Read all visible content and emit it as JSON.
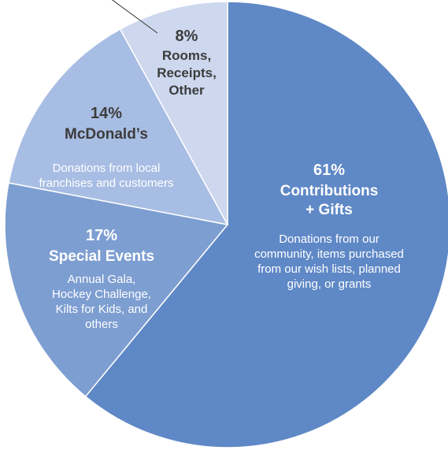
{
  "chart_data": {
    "type": "pie",
    "title": "",
    "start_angle_deg": 0,
    "direction": "clockwise",
    "slices": [
      {
        "value": 61,
        "percent_label": "61%",
        "name_lines": [
          "Contributions",
          "+ Gifts"
        ],
        "description_lines": [
          "Donations from our",
          "community, items purchased",
          "from our wish lists, planned",
          "giving, or grants"
        ],
        "color": "#5f88c6",
        "text_color": "#ffffff",
        "desc_color": "#ffffff"
      },
      {
        "value": 17,
        "percent_label": "17%",
        "name_lines": [
          "Special Events"
        ],
        "description_lines": [
          "Annual Gala,",
          "Hockey Challenge,",
          "Kilts for Kids, and",
          "others"
        ],
        "color": "#7d9ed1",
        "text_color": "#ffffff",
        "desc_color": "#ffffff"
      },
      {
        "value": 14,
        "percent_label": "14%",
        "name_lines": [
          "McDonald’s"
        ],
        "description_lines": [
          "Donations from local",
          "franchises and customers"
        ],
        "color": "#a8bde3",
        "text_color": "#3c3c3c",
        "desc_color": "#ffffff"
      },
      {
        "value": 8,
        "percent_label": "8%",
        "name_lines": [
          "Rooms,",
          "Receipts,",
          "Other"
        ],
        "description_lines": [],
        "color": "#cdd8ee",
        "text_color": "#3c3c3c",
        "desc_color": "#3c3c3c"
      }
    ],
    "colors": {
      "stroke": "#ffffff",
      "leader_line": "#333333"
    }
  }
}
